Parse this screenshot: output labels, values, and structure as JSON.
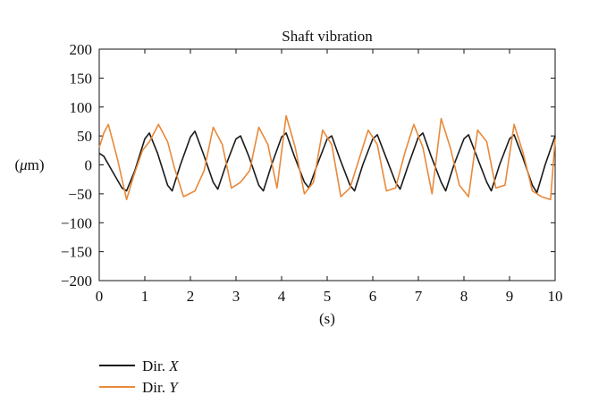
{
  "chart_data": {
    "type": "line",
    "title": "Shaft vibration",
    "xlabel": "(s)",
    "ylabel_prefix": "(",
    "ylabel_symbol": "μ",
    "ylabel_suffix": "m)",
    "xlim": [
      0,
      10
    ],
    "ylim": [
      -200,
      200
    ],
    "xticks": [
      "0",
      "1",
      "2",
      "3",
      "4",
      "5",
      "6",
      "7",
      "8",
      "9",
      "10"
    ],
    "yticks": [
      "200",
      "150",
      "100",
      "50",
      "0",
      "−50",
      "−100",
      "−150",
      "−200"
    ],
    "grid": false,
    "legend_position": "bottom-left",
    "series": [
      {
        "name": "Dir. X",
        "name_prefix": "Dir. ",
        "name_var": "X",
        "color": "#1a1a1a",
        "x": [
          0.0,
          0.1,
          0.28,
          0.5,
          0.6,
          0.78,
          1.0,
          1.1,
          1.28,
          1.5,
          1.6,
          1.78,
          2.0,
          2.1,
          2.28,
          2.5,
          2.6,
          2.78,
          3.0,
          3.1,
          3.28,
          3.5,
          3.6,
          3.78,
          4.0,
          4.1,
          4.28,
          4.5,
          4.6,
          4.78,
          5.0,
          5.1,
          5.28,
          5.5,
          5.6,
          5.78,
          6.0,
          6.1,
          6.28,
          6.5,
          6.6,
          6.78,
          7.0,
          7.1,
          7.28,
          7.5,
          7.6,
          7.78,
          8.0,
          8.1,
          8.28,
          8.5,
          8.6,
          8.78,
          9.0,
          9.1,
          9.28,
          9.5,
          9.6,
          9.78,
          10.0
        ],
        "y": [
          20,
          15,
          -10,
          -40,
          -45,
          -10,
          45,
          55,
          20,
          -35,
          -45,
          0,
          48,
          58,
          20,
          -30,
          -42,
          0,
          45,
          50,
          15,
          -35,
          -45,
          0,
          48,
          55,
          15,
          -30,
          -40,
          0,
          45,
          50,
          10,
          -35,
          -45,
          0,
          45,
          52,
          15,
          -30,
          -42,
          0,
          48,
          55,
          15,
          -30,
          -45,
          0,
          45,
          52,
          15,
          -30,
          -45,
          0,
          45,
          52,
          15,
          -35,
          -48,
          0,
          50
        ]
      },
      {
        "name": "Dir. Y",
        "name_prefix": "Dir. ",
        "name_var": "Y",
        "color": "#e8893a",
        "x": [
          0.0,
          0.1,
          0.2,
          0.4,
          0.6,
          0.75,
          0.95,
          1.1,
          1.3,
          1.5,
          1.65,
          1.85,
          2.1,
          2.3,
          2.5,
          2.7,
          2.9,
          3.1,
          3.3,
          3.5,
          3.7,
          3.9,
          4.1,
          4.3,
          4.5,
          4.7,
          4.9,
          5.1,
          5.3,
          5.5,
          5.7,
          5.9,
          6.1,
          6.3,
          6.5,
          6.7,
          6.9,
          7.1,
          7.3,
          7.5,
          7.7,
          7.9,
          8.1,
          8.3,
          8.5,
          8.7,
          8.9,
          9.1,
          9.3,
          9.5,
          9.7,
          9.9,
          10.0
        ],
        "y": [
          30,
          55,
          70,
          10,
          -60,
          -20,
          25,
          40,
          70,
          40,
          -5,
          -55,
          -45,
          -10,
          65,
          35,
          -40,
          -30,
          -10,
          65,
          35,
          -40,
          85,
          30,
          -50,
          -30,
          60,
          35,
          -55,
          -40,
          10,
          60,
          35,
          -45,
          -40,
          20,
          70,
          30,
          -50,
          80,
          30,
          -35,
          -55,
          60,
          40,
          -40,
          -35,
          70,
          20,
          -45,
          -55,
          -60,
          45
        ]
      }
    ]
  }
}
